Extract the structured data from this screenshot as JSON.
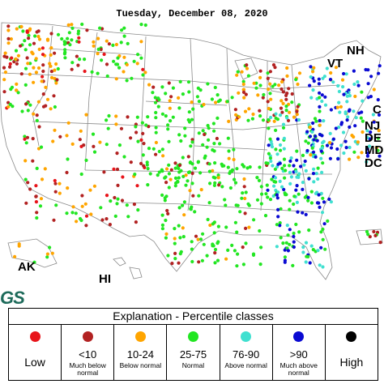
{
  "header": {
    "date": "Tuesday, December 08, 2020"
  },
  "state_labels": {
    "nh": "NH",
    "vt": "VT",
    "ct": "C",
    "nj": "NJ",
    "de": "DE",
    "md": "MD",
    "dc": "DC",
    "ak": "AK",
    "hi": "HI"
  },
  "logo": {
    "text": "GS"
  },
  "legend": {
    "title": "Explanation - Percentile classes",
    "classes": [
      {
        "key": "low",
        "label": "Low",
        "sub": "",
        "color": "#e8141a"
      },
      {
        "key": "lt10",
        "label": "<10",
        "sub": "Much below normal",
        "color": "#b22222"
      },
      {
        "key": "p1024",
        "label": "10-24",
        "sub": "Below normal",
        "color": "#ffa500"
      },
      {
        "key": "p2575",
        "label": "25-75",
        "sub": "Normal",
        "color": "#22e622"
      },
      {
        "key": "p7690",
        "label": "76-90",
        "sub": "Above normal",
        "color": "#40e0d0"
      },
      {
        "key": "gt90",
        "label": ">90",
        "sub": "Much above normal",
        "color": "#0a0ad2"
      },
      {
        "key": "high",
        "label": "High",
        "sub": "",
        "color": "#000000"
      }
    ]
  },
  "map_colors": {
    "land": "#ffffff",
    "border": "#8a8a8a",
    "water": "#ffffff"
  }
}
